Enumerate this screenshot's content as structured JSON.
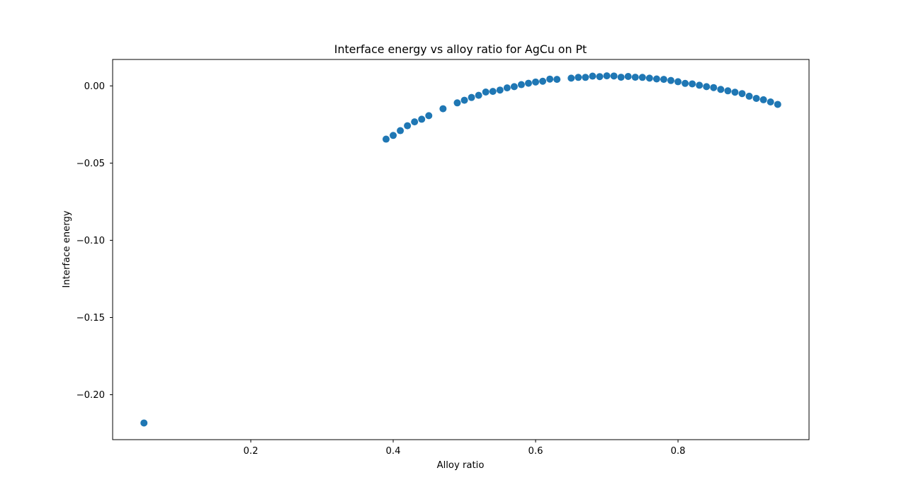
{
  "chart_data": {
    "type": "scatter",
    "title": "Interface energy vs alloy ratio for AgCu on Pt",
    "xlabel": "Alloy ratio",
    "ylabel": "Interface energy",
    "xlim": [
      0.006,
      0.984
    ],
    "ylim": [
      -0.2291,
      0.0171
    ],
    "xticks": [
      {
        "value": 0.2,
        "label": "0.2"
      },
      {
        "value": 0.4,
        "label": "0.4"
      },
      {
        "value": 0.6,
        "label": "0.6"
      },
      {
        "value": 0.8,
        "label": "0.8"
      }
    ],
    "yticks": [
      {
        "value": 0.0,
        "label": "0.00"
      },
      {
        "value": -0.05,
        "label": "−0.05"
      },
      {
        "value": -0.1,
        "label": "−0.10"
      },
      {
        "value": -0.15,
        "label": "−0.15"
      },
      {
        "value": -0.2,
        "label": "−0.20"
      }
    ],
    "grid": false,
    "legend": "none",
    "marker_color": "#1f77b4",
    "x": [
      0.05,
      0.39,
      0.4,
      0.41,
      0.42,
      0.43,
      0.44,
      0.45,
      0.47,
      0.49,
      0.5,
      0.51,
      0.52,
      0.53,
      0.54,
      0.55,
      0.56,
      0.57,
      0.58,
      0.59,
      0.6,
      0.61,
      0.62,
      0.63,
      0.65,
      0.66,
      0.67,
      0.68,
      0.69,
      0.7,
      0.71,
      0.72,
      0.73,
      0.74,
      0.75,
      0.76,
      0.77,
      0.78,
      0.79,
      0.8,
      0.81,
      0.82,
      0.83,
      0.84,
      0.85,
      0.86,
      0.87,
      0.88,
      0.89,
      0.9,
      0.91,
      0.92,
      0.93,
      0.94
    ],
    "y": [
      -0.2183,
      -0.0345,
      -0.0321,
      -0.029,
      -0.0258,
      -0.0233,
      -0.0216,
      -0.0193,
      -0.0148,
      -0.011,
      -0.0093,
      -0.0075,
      -0.0061,
      -0.004,
      -0.0036,
      -0.0027,
      -0.0013,
      -0.0005,
      0.0008,
      0.0017,
      0.0025,
      0.003,
      0.0044,
      0.0042,
      0.005,
      0.0055,
      0.0055,
      0.0063,
      0.006,
      0.0065,
      0.0064,
      0.0056,
      0.0061,
      0.0056,
      0.0055,
      0.005,
      0.0045,
      0.0042,
      0.0035,
      0.0027,
      0.0016,
      0.0013,
      0.0004,
      -0.0005,
      -0.0011,
      -0.0023,
      -0.0032,
      -0.0041,
      -0.005,
      -0.0067,
      -0.0081,
      -0.009,
      -0.0104,
      -0.012
    ]
  }
}
